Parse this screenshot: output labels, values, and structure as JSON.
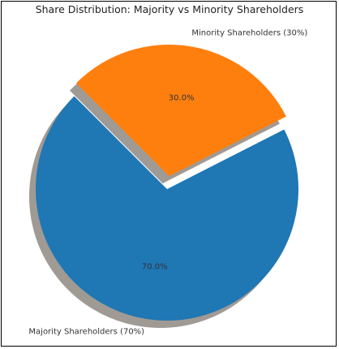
{
  "chart_data": {
    "type": "pie",
    "title": "Share Distribution: Majority vs Minority Shareholders",
    "labels": [
      "Majority Shareholders (70%)",
      "Minority Shareholders (30%)"
    ],
    "values": [
      70,
      30
    ],
    "pct_labels": [
      "70.0%",
      "30.0%"
    ],
    "colors": [
      "#1f77b4",
      "#ff7f0e"
    ],
    "shadow_color": "#a09a94",
    "explode": [
      0,
      0.1
    ],
    "shadow": true,
    "legend": "none"
  }
}
